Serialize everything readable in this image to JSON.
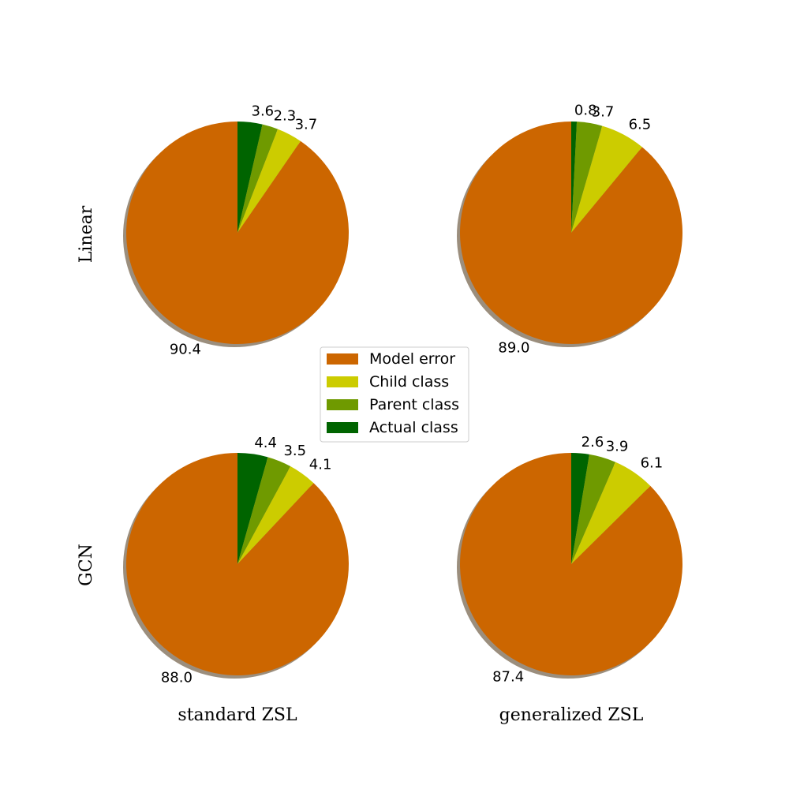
{
  "chart_data": {
    "type": "pie",
    "layout": "2x2 grid",
    "legend": {
      "placement": "center",
      "entries": [
        {
          "label": "Model error",
          "color": "#cc6600"
        },
        {
          "label": "Child class",
          "color": "#cccc00"
        },
        {
          "label": "Parent class",
          "color": "#6f9a00"
        },
        {
          "label": "Actual class",
          "color": "#006400"
        }
      ]
    },
    "row_labels": [
      "Linear",
      "GCN"
    ],
    "col_labels": [
      "standard ZSL",
      "generalized ZSL"
    ],
    "charts": [
      {
        "row": "Linear",
        "col": "standard ZSL",
        "slices": [
          {
            "category": "Actual class",
            "value": 3.6,
            "label": "3.6"
          },
          {
            "category": "Parent class",
            "value": 2.3,
            "label": "2.3"
          },
          {
            "category": "Child class",
            "value": 3.7,
            "label": "3.7"
          },
          {
            "category": "Model error",
            "value": 90.4,
            "label": "90.4"
          }
        ]
      },
      {
        "row": "Linear",
        "col": "generalized ZSL",
        "slices": [
          {
            "category": "Actual class",
            "value": 0.8,
            "label": "0.8"
          },
          {
            "category": "Parent class",
            "value": 3.7,
            "label": "3.7"
          },
          {
            "category": "Child class",
            "value": 6.5,
            "label": "6.5"
          },
          {
            "category": "Model error",
            "value": 89.0,
            "label": "89.0"
          }
        ]
      },
      {
        "row": "GCN",
        "col": "standard ZSL",
        "slices": [
          {
            "category": "Actual class",
            "value": 4.4,
            "label": "4.4"
          },
          {
            "category": "Parent class",
            "value": 3.5,
            "label": "3.5"
          },
          {
            "category": "Child class",
            "value": 4.1,
            "label": "4.1"
          },
          {
            "category": "Model error",
            "value": 88.0,
            "label": "88.0"
          }
        ]
      },
      {
        "row": "GCN",
        "col": "generalized ZSL",
        "slices": [
          {
            "category": "Actual class",
            "value": 2.6,
            "label": "2.6"
          },
          {
            "category": "Parent class",
            "value": 3.9,
            "label": "3.9"
          },
          {
            "category": "Child class",
            "value": 6.1,
            "label": "6.1"
          },
          {
            "category": "Model error",
            "value": 87.4,
            "label": "87.4"
          }
        ]
      }
    ],
    "shadow": true,
    "start": "top",
    "direction": "clockwise"
  }
}
